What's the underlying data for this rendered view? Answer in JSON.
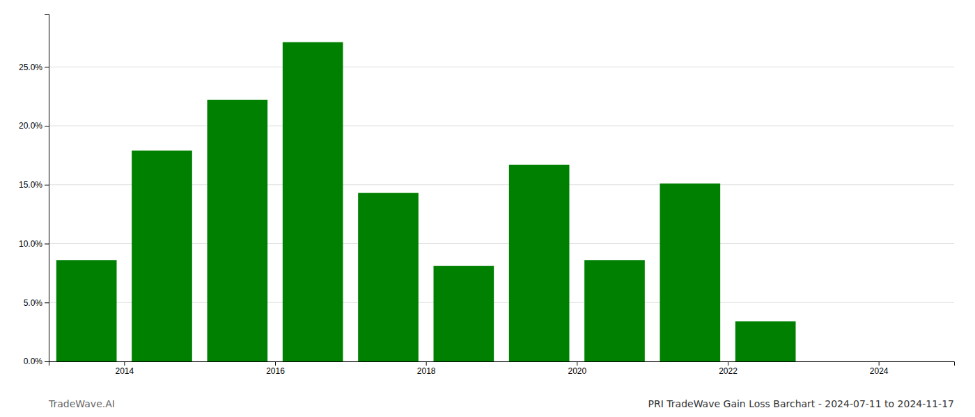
{
  "chart_data": {
    "type": "bar",
    "title": "PRI TradeWave Gain Loss Barchart - 2024-07-11 to 2024-11-17",
    "annotations": [
      "TradeWave.AI"
    ],
    "x": [
      2013.5,
      2014.5,
      2015.5,
      2016.5,
      2017.5,
      2018.5,
      2019.5,
      2020.5,
      2021.5,
      2022.5,
      2023.5
    ],
    "values": [
      0.086,
      0.179,
      0.222,
      0.271,
      0.143,
      0.081,
      0.167,
      0.086,
      0.151,
      0.034,
      0.0
    ],
    "color": "#008000",
    "xlim": [
      2013.0,
      2025.0
    ],
    "xticks": [
      2014,
      2016,
      2018,
      2020,
      2022,
      2024
    ],
    "ylim": [
      0,
      0.295
    ],
    "yticks": [
      {
        "value": 0.0,
        "label": "0.0%"
      },
      {
        "value": 0.05,
        "label": "5.0%"
      },
      {
        "value": 0.1,
        "label": "10.0%"
      },
      {
        "value": 0.15,
        "label": "15.0%"
      },
      {
        "value": 0.2,
        "label": "20.0%"
      },
      {
        "value": 0.25,
        "label": "25.0%"
      }
    ],
    "grid": true
  }
}
